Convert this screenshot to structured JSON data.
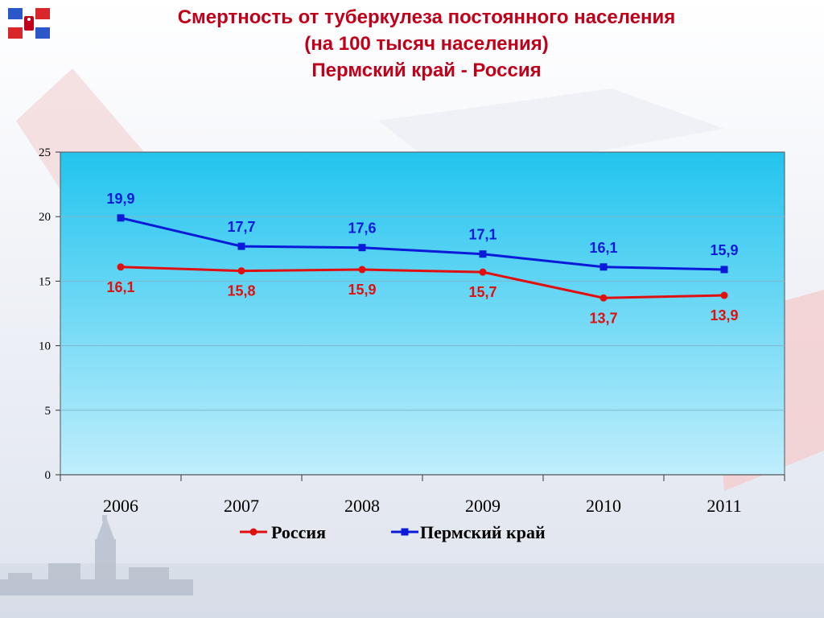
{
  "title": {
    "line1": "Смертность от туберкулеза постоянного населения",
    "line2": "(на 100 тысяч населения)",
    "line3": "Пермский край - Россия"
  },
  "colors": {
    "title": "#c0001a",
    "russia": "#e01010",
    "perm": "#0a1ad8",
    "plot_top": "#22c4ee",
    "plot_bottom": "#bfeefc"
  },
  "logo": {
    "icon": "perm-flag-emblem-icon"
  },
  "chart_data": {
    "type": "line",
    "categories": [
      "2006",
      "2007",
      "2008",
      "2009",
      "2010",
      "2011"
    ],
    "ylim": [
      0,
      25
    ],
    "yticks": [
      "0",
      "5",
      "10",
      "15",
      "20",
      "25"
    ],
    "grid": true,
    "legend_position": "bottom",
    "series": [
      {
        "name": "Россия",
        "values": [
          16.1,
          15.8,
          15.9,
          15.7,
          13.7,
          13.9
        ],
        "labels": [
          "16,1",
          "15,8",
          "15,9",
          "15,7",
          "13,7",
          "13,9"
        ],
        "marker": "circle"
      },
      {
        "name": "Пермский край",
        "values": [
          19.9,
          17.7,
          17.6,
          17.1,
          16.1,
          15.9
        ],
        "labels": [
          "19,9",
          "17,7",
          "17,6",
          "17,1",
          "16,1",
          "15,9"
        ],
        "marker": "square"
      }
    ]
  }
}
